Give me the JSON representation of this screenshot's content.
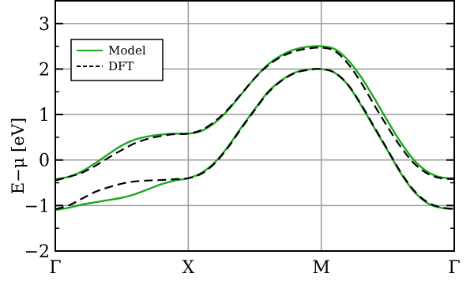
{
  "chart_data": {
    "type": "line",
    "ylabel": "E−μ  [eV]",
    "xlabel": "",
    "ylim": [
      -2,
      3.5
    ],
    "xlim": [
      0,
      3
    ],
    "yticks": [
      3,
      2,
      1,
      0,
      -1,
      -2
    ],
    "ytick_labels": [
      "3",
      "2",
      "1",
      "0",
      "−1",
      "−2"
    ],
    "xticks": [
      0,
      1,
      2,
      3
    ],
    "xtick_labels": [
      "Γ",
      "X",
      "M",
      "Γ"
    ],
    "grid": true,
    "legend_position": "top-left",
    "series": [
      {
        "name": "Model",
        "color": "#1fa61f",
        "dash": "solid",
        "curves": [
          {
            "x": [
              0,
              0.1,
              0.2,
              0.3,
              0.4,
              0.5,
              0.6,
              0.7,
              0.8,
              0.9,
              1.0,
              1.1,
              1.2,
              1.3,
              1.4,
              1.5,
              1.6,
              1.7,
              1.8,
              1.9,
              2.0,
              2.1,
              2.2,
              2.3,
              2.4,
              2.5,
              2.6,
              2.7,
              2.8,
              2.9,
              3.0
            ],
            "y": [
              -0.42,
              -0.37,
              -0.25,
              -0.07,
              0.13,
              0.32,
              0.45,
              0.52,
              0.56,
              0.58,
              0.58,
              0.64,
              0.82,
              1.1,
              1.45,
              1.8,
              2.1,
              2.3,
              2.43,
              2.49,
              2.5,
              2.44,
              2.2,
              1.82,
              1.35,
              0.85,
              0.38,
              -0.01,
              -0.26,
              -0.38,
              -0.4
            ]
          },
          {
            "x": [
              0,
              0.1,
              0.2,
              0.3,
              0.4,
              0.5,
              0.6,
              0.7,
              0.8,
              0.9,
              1.0,
              1.1,
              1.2,
              1.3,
              1.4,
              1.5,
              1.6,
              1.7,
              1.8,
              1.9,
              2.0,
              2.1,
              2.2,
              2.3,
              2.4,
              2.5,
              2.6,
              2.7,
              2.8,
              2.9,
              3.0
            ],
            "y": [
              -1.1,
              -1.05,
              -0.98,
              -0.93,
              -0.88,
              -0.83,
              -0.75,
              -0.64,
              -0.53,
              -0.45,
              -0.4,
              -0.28,
              -0.05,
              0.3,
              0.72,
              1.12,
              1.5,
              1.75,
              1.92,
              1.99,
              2.0,
              1.92,
              1.65,
              1.2,
              0.7,
              0.2,
              -0.3,
              -0.7,
              -0.95,
              -1.05,
              -1.07
            ]
          }
        ]
      },
      {
        "name": "DFT",
        "color": "#000000",
        "dash": "dashed",
        "curves": [
          {
            "x": [
              0,
              0.1,
              0.2,
              0.3,
              0.4,
              0.5,
              0.6,
              0.7,
              0.8,
              0.9,
              1.0,
              1.1,
              1.2,
              1.3,
              1.4,
              1.5,
              1.6,
              1.7,
              1.8,
              1.9,
              2.0,
              2.1,
              2.2,
              2.3,
              2.4,
              2.5,
              2.6,
              2.7,
              2.8,
              2.9,
              3.0
            ],
            "y": [
              -0.45,
              -0.37,
              -0.28,
              -0.13,
              0.05,
              0.22,
              0.37,
              0.47,
              0.53,
              0.57,
              0.58,
              0.66,
              0.85,
              1.12,
              1.46,
              1.8,
              2.08,
              2.27,
              2.39,
              2.45,
              2.47,
              2.4,
              2.12,
              1.7,
              1.2,
              0.72,
              0.28,
              -0.08,
              -0.3,
              -0.4,
              -0.42
            ]
          },
          {
            "x": [
              0,
              0.1,
              0.2,
              0.3,
              0.4,
              0.5,
              0.6,
              0.7,
              0.8,
              0.9,
              1.0,
              1.1,
              1.2,
              1.3,
              1.4,
              1.5,
              1.6,
              1.7,
              1.8,
              1.9,
              2.0,
              2.1,
              2.2,
              2.3,
              2.4,
              2.5,
              2.6,
              2.7,
              2.8,
              2.9,
              3.0
            ],
            "y": [
              -1.08,
              -1.0,
              -0.85,
              -0.7,
              -0.6,
              -0.52,
              -0.47,
              -0.45,
              -0.44,
              -0.42,
              -0.4,
              -0.3,
              -0.07,
              0.28,
              0.7,
              1.1,
              1.48,
              1.74,
              1.91,
              1.98,
              2.0,
              1.92,
              1.66,
              1.22,
              0.72,
              0.22,
              -0.28,
              -0.68,
              -0.93,
              -1.04,
              -1.08
            ]
          }
        ]
      }
    ]
  }
}
